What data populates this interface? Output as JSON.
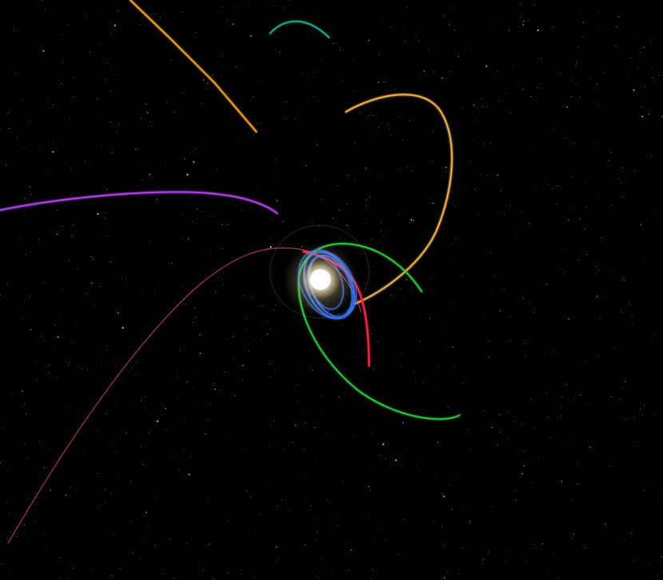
{
  "scene": {
    "background": "#020203",
    "star_color": "#e8e8f0",
    "sun": {
      "core": "#ffffff",
      "glow": "#fff6dc",
      "halo": "#ffe9b0"
    },
    "trails": [
      {
        "id": "trail-orange-far",
        "color": "#f0a020"
      },
      {
        "id": "trail-orange-loop",
        "color": "#f2b04a"
      },
      {
        "id": "trail-teal",
        "color": "#1fb89a"
      },
      {
        "id": "trail-purple",
        "color": "#b040e8"
      },
      {
        "id": "trail-green",
        "color": "#2ecc40"
      },
      {
        "id": "trail-red",
        "color": "#ff2040"
      },
      {
        "id": "trail-pink",
        "color": "#d84a7a"
      },
      {
        "id": "trail-blue",
        "color": "#3a78ff"
      }
    ]
  }
}
